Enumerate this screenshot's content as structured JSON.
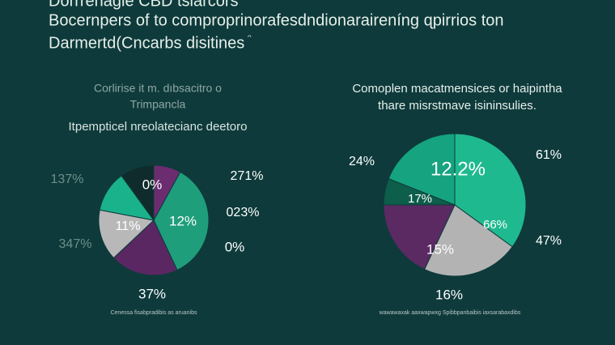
{
  "header": {
    "lines": [
      "Dorrrehagle CBD tsiarcors",
      "Bocernpers of to comproprinorafesdndionaraireníng ɋpirrios ton",
      "Darmertd(Cncarbs disitines",
      "ᵔ"
    ]
  },
  "chart_data": [
    {
      "type": "pie",
      "title": "Corlirise it m. dıbsacitro o",
      "subtitle": "Trimpancla",
      "note": "Itpempticel nreolatecianc deetoro",
      "values": [
        8,
        35,
        20,
        15,
        12,
        10
      ],
      "colors": [
        "#6b2d70",
        "#1f9e7b",
        "#5a2763",
        "#b8b8b8",
        "#1ab28a",
        "#102b2b"
      ],
      "annotations": [
        "137%",
        "347%",
        "0%",
        "11%",
        "12%",
        "271%",
        "023%",
        "0%",
        "37%"
      ],
      "footer": "Cenessa fisabpradibis as aruanibs"
    },
    {
      "type": "pie",
      "title": "Comoplen macatmensices or haipintha",
      "subtitle": "thare misrstmave isininsulies.",
      "values": [
        35,
        22,
        18,
        6,
        19
      ],
      "colors": [
        "#1fb98f",
        "#b3b3b3",
        "#5b2a63",
        "#0d5e4a",
        "#16a37f"
      ],
      "annotations": [
        "24%",
        "12.2%",
        "17%",
        "66%",
        "15%",
        "61%",
        "47%",
        "16%"
      ],
      "footer": "wawawaxak aaxwapwxg Spibbpanbaibis iaxsarabaxdibs"
    }
  ]
}
